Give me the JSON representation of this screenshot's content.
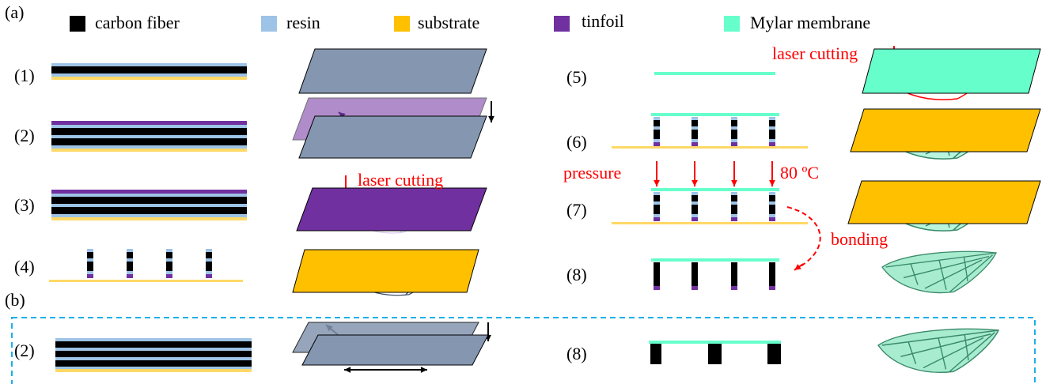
{
  "panels": [
    {
      "label": "(a)"
    },
    {
      "label": "(b)"
    }
  ],
  "legend": [
    {
      "label": "carbon fiber",
      "color": "#000000"
    },
    {
      "label": "resin",
      "color": "#9dc3e6"
    },
    {
      "label": "substrate",
      "color": "#ffc000"
    },
    {
      "label": "tinfoil",
      "color": "#7030a0"
    },
    {
      "label": "Mylar membrane",
      "color": "#66ffcc"
    }
  ],
  "steps_a": [
    "(1)",
    "(2)",
    "(3)",
    "(4)",
    "(5)",
    "(6)",
    "(7)",
    "(8)"
  ],
  "steps_b": [
    "(2)",
    "(8)"
  ],
  "annotations": {
    "laser_cutting_step3": "laser cutting",
    "laser_cutting_step5": "laser cutting",
    "pressure": "pressure",
    "temperature": "80 ºC",
    "bonding": "bonding"
  }
}
